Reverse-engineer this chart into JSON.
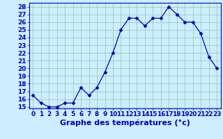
{
  "x": [
    0,
    1,
    2,
    3,
    4,
    5,
    6,
    7,
    8,
    9,
    10,
    11,
    12,
    13,
    14,
    15,
    16,
    17,
    18,
    19,
    20,
    21,
    22,
    23
  ],
  "y": [
    16.5,
    15.5,
    15.0,
    15.0,
    15.5,
    15.5,
    17.5,
    16.5,
    17.5,
    19.5,
    22.0,
    25.0,
    26.5,
    26.5,
    25.5,
    26.5,
    26.5,
    28.0,
    27.0,
    26.0,
    26.0,
    24.5,
    21.5,
    20.0
  ],
  "xlabel": "Graphe des températures (°c)",
  "ylim_min": 15,
  "ylim_max": 28,
  "xlim_min": 0,
  "xlim_max": 23,
  "yticks": [
    15,
    16,
    17,
    18,
    19,
    20,
    21,
    22,
    23,
    24,
    25,
    26,
    27,
    28
  ],
  "xticks": [
    0,
    1,
    2,
    3,
    4,
    5,
    6,
    7,
    8,
    9,
    10,
    11,
    12,
    13,
    14,
    15,
    16,
    17,
    18,
    19,
    20,
    21,
    22,
    23
  ],
  "line_color": "#0000bb",
  "marker": "D",
  "marker_size": 2.5,
  "bg_color": "#cceeff",
  "grid_color": "#99ccbb",
  "xlabel_fontsize": 8,
  "tick_fontsize": 6.5,
  "linewidth": 0.9
}
